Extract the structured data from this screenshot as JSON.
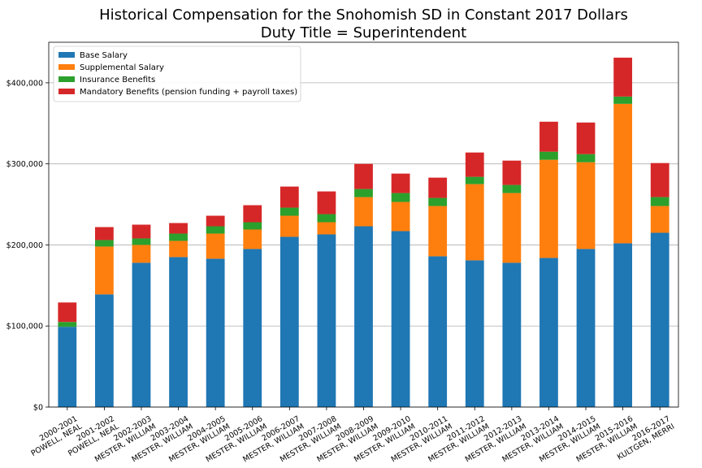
{
  "chart_data": {
    "type": "bar",
    "stacked": true,
    "title_line1": "Historical Compensation for the Snohomish SD in Constant 2017 Dollars",
    "title_line2": "Duty Title = Superintendent",
    "categories": [
      [
        "2000-2001",
        "POWELL, NEAL"
      ],
      [
        "2001-2002",
        "POWELL, NEAL"
      ],
      [
        "2002-2003",
        "MESTER, WILLIAM"
      ],
      [
        "2003-2004",
        "MESTER, WILLIAM"
      ],
      [
        "2004-2005",
        "MESTER, WILLIAM"
      ],
      [
        "2005-2006",
        "MESTER, WILLIAM"
      ],
      [
        "2006-2007",
        "MESTER, WILLIAM"
      ],
      [
        "2007-2008",
        "MESTER, WILLIAM"
      ],
      [
        "2008-2009",
        "MESTER, WILLIAM"
      ],
      [
        "2009-2010",
        "MESTER, WILLIAM"
      ],
      [
        "2010-2011",
        "MESTER, WILLIAM"
      ],
      [
        "2011-2012",
        "MESTER, WILLIAM"
      ],
      [
        "2012-2013",
        "MESTER, WILLIAM"
      ],
      [
        "2013-2014",
        "MESTER, WILLIAM"
      ],
      [
        "2014-2015",
        "MESTER, WILLIAM"
      ],
      [
        "2015-2016",
        "MESTER, WILLIAM"
      ],
      [
        "2016-2017",
        "KULTGEN, MERRI"
      ]
    ],
    "series": [
      {
        "name": "Base Salary",
        "color": "#1f77b4",
        "values": [
          99000,
          139000,
          178000,
          185000,
          183000,
          195000,
          210000,
          213000,
          223000,
          217000,
          186000,
          181000,
          178000,
          184000,
          195000,
          202000,
          215000
        ]
      },
      {
        "name": "Supplemental Salary",
        "color": "#ff7f0e",
        "values": [
          0,
          59000,
          22000,
          20000,
          31000,
          24000,
          26000,
          15000,
          36000,
          36000,
          62000,
          94000,
          86000,
          121000,
          107000,
          172000,
          33000
        ]
      },
      {
        "name": "Insurance Benefits",
        "color": "#2ca02c",
        "values": [
          6000,
          8000,
          8000,
          9000,
          9000,
          9000,
          10000,
          10000,
          10000,
          11000,
          10000,
          9000,
          10000,
          10000,
          10000,
          9000,
          11000
        ]
      },
      {
        "name": "Mandatory Benefits (pension funding + payroll taxes)",
        "color": "#d62728",
        "values": [
          24000,
          16000,
          17000,
          13000,
          13000,
          21000,
          26000,
          28000,
          31000,
          24000,
          25000,
          30000,
          30000,
          37000,
          39000,
          48000,
          42000
        ]
      }
    ],
    "ylim": [
      0,
      450000
    ],
    "yticks": [
      0,
      100000,
      200000,
      300000,
      400000
    ],
    "ytick_labels": [
      "$0",
      "$100,000",
      "$200,000",
      "$300,000",
      "$400,000"
    ],
    "grid": "horizontal",
    "legend_position": "top-left"
  }
}
